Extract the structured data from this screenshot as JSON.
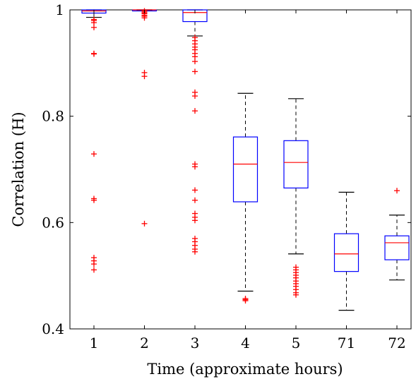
{
  "chart_data": {
    "type": "box",
    "xlabel": "Time (approximate hours)",
    "ylabel": "Correlation (H)",
    "ylim": [
      0.4,
      1.0
    ],
    "yticks": [
      0.4,
      0.6,
      0.8,
      1
    ],
    "ytick_labels": [
      "0.4",
      "0.6",
      "0.8",
      "1"
    ],
    "grid": false,
    "colors": {
      "box": "#0000ff",
      "median": "#ff0000",
      "whisker": "#000000",
      "outlier": "#ff0000"
    },
    "categories": [
      "1",
      "2",
      "3",
      "4",
      "5",
      "71",
      "72"
    ],
    "boxes": [
      {
        "label": "1",
        "whisker_low": 0.986,
        "q1": 0.994,
        "median": 0.998,
        "q3": 1.0,
        "whisker_high": 1.0,
        "outliers": [
          0.982,
          0.98,
          0.976,
          0.967,
          0.918,
          0.917,
          0.729,
          0.645,
          0.642,
          0.534,
          0.528,
          0.522,
          0.511
        ]
      },
      {
        "label": "2",
        "whisker_low": 0.999,
        "q1": 1.0,
        "median": 1.0,
        "q3": 1.0,
        "whisker_high": 1.0,
        "outliers": [
          0.998,
          0.996,
          0.994,
          0.993,
          0.99,
          0.988,
          0.985,
          0.882,
          0.875,
          0.598
        ]
      },
      {
        "label": "3",
        "whisker_low": 0.951,
        "q1": 0.978,
        "median": 0.995,
        "q3": 1.0,
        "whisker_high": 1.0,
        "outliers": [
          0.948,
          0.942,
          0.936,
          0.93,
          0.925,
          0.918,
          0.912,
          0.903,
          0.884,
          0.845,
          0.838,
          0.81,
          0.71,
          0.705,
          0.661,
          0.642,
          0.617,
          0.61,
          0.604,
          0.57,
          0.564,
          0.557,
          0.55,
          0.545
        ]
      },
      {
        "label": "4",
        "whisker_low": 0.471,
        "q1": 0.639,
        "median": 0.71,
        "q3": 0.761,
        "whisker_high": 0.843,
        "outliers": [
          0.457,
          0.455,
          0.453
        ]
      },
      {
        "label": "5",
        "whisker_low": 0.541,
        "q1": 0.665,
        "median": 0.713,
        "q3": 0.754,
        "whisker_high": 0.833,
        "outliers": [
          0.516,
          0.511,
          0.506,
          0.501,
          0.496,
          0.49,
          0.485,
          0.48,
          0.474,
          0.468,
          0.464
        ]
      },
      {
        "label": "71",
        "whisker_low": 0.435,
        "q1": 0.508,
        "median": 0.541,
        "q3": 0.579,
        "whisker_high": 0.657,
        "outliers": []
      },
      {
        "label": "72",
        "whisker_low": 0.492,
        "q1": 0.53,
        "median": 0.562,
        "q3": 0.575,
        "whisker_high": 0.614,
        "outliers": [
          0.66
        ]
      }
    ]
  }
}
